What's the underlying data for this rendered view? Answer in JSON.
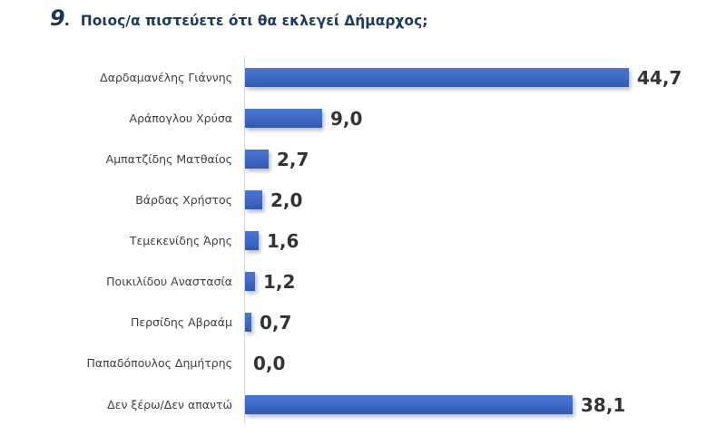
{
  "header": {
    "question_number": "9",
    "question_dot": ".",
    "question_text": "Ποιος/α πιστεύετε ότι θα εκλεγεί Δήμαρχος;"
  },
  "colors": {
    "bar": "#3d68c5",
    "title": "#1e3a5f",
    "value_label": "#333333",
    "category_label": "#404040"
  },
  "chart_data": {
    "type": "bar",
    "orientation": "horizontal",
    "title": "9. Ποιος/α πιστεύετε ότι θα εκλεγεί Δήμαρχος;",
    "xlabel": "",
    "ylabel": "",
    "grid": false,
    "legend": null,
    "xlim": [
      0,
      50
    ],
    "categories": [
      "Δαρδαμανέλης Γιάννης",
      "Αράπογλου Χρύσα",
      "Αμπατζίδης Ματθαίος",
      "Βάρδας Χρήστος",
      "Τεμεκενίδης Άρης",
      "Ποικιλίδου Αναστασία",
      "Περσίδης Αβραάμ",
      "Παπαδόπουλος Δημήτρης",
      "Δεν ξέρω/Δεν απαντώ"
    ],
    "values": [
      44.7,
      9.0,
      2.7,
      2.0,
      1.6,
      1.2,
      0.7,
      0.0,
      38.1
    ],
    "value_labels": [
      "44,7",
      "9,0",
      "2,7",
      "2,0",
      "1,6",
      "1,2",
      "0,7",
      "0,0",
      "38,1"
    ]
  }
}
